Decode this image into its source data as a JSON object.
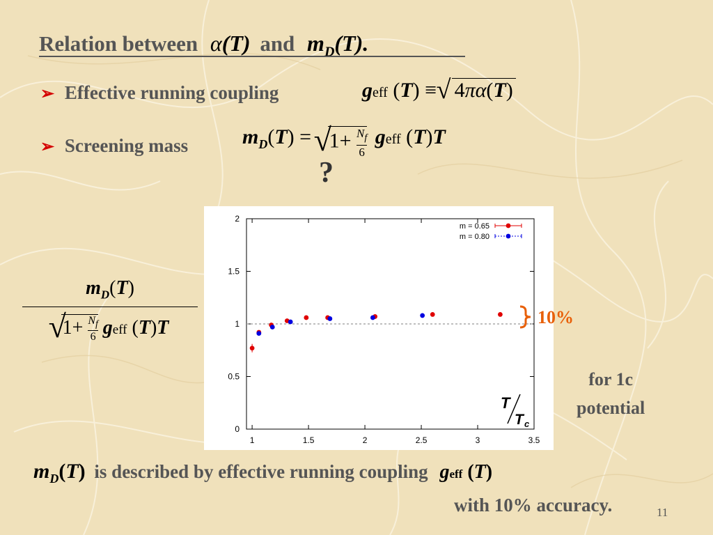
{
  "heading": {
    "text_prefix": "Relation between",
    "alpha_T": "α(T)",
    "and": "and",
    "mD_T": "mD(T)."
  },
  "bullets": [
    {
      "label": "Effective running coupling",
      "formula": "g_eff(T) ≡ √(4πα(T))"
    },
    {
      "label": "Screening mass",
      "formula": "m_D(T) = √(1+N_f/6) g_eff(T) T"
    }
  ],
  "question_mark": "?",
  "left_formula": {
    "numerator": "m_D(T)",
    "denominator": "√(1+N_f/6) g_eff(T) T"
  },
  "annotations": {
    "percent": "10%",
    "for_1c": "for 1c",
    "potential": "potential",
    "x_axis_label": "T/Tc"
  },
  "bottom": {
    "prefix_math": "m_D(T)",
    "text": "is described by effective running coupling",
    "suffix_math": "g_eff(T)",
    "line2": "with 10% accuracy."
  },
  "page_number": "11",
  "colors": {
    "red_series": "#e00000",
    "blue_series": "#0000e0",
    "accent": "#e8600a",
    "arrow": "#d40000"
  },
  "chart_data": {
    "type": "scatter",
    "xlim": [
      0.95,
      3.5
    ],
    "ylim": [
      0,
      2
    ],
    "xticks": [
      "1",
      "1.5",
      "2",
      "2.5",
      "3",
      "3.5"
    ],
    "yticks": [
      "0",
      "0.5",
      "1",
      "1.5",
      "2"
    ],
    "reference_line": 1,
    "legend_position": "top-right",
    "series": [
      {
        "name": "m = 0.65",
        "color": "#e00000",
        "x": [
          1.0,
          1.06,
          1.17,
          1.31,
          1.48,
          1.67,
          2.09,
          2.6,
          3.2
        ],
        "y": [
          0.77,
          0.92,
          0.99,
          1.03,
          1.06,
          1.06,
          1.07,
          1.09,
          1.09
        ],
        "err": [
          0.04,
          0.02,
          0.02,
          0.01,
          0.01,
          0.01,
          0.01,
          0.01,
          0.01
        ]
      },
      {
        "name": "m = 0.80",
        "color": "#0000e0",
        "x": [
          1.06,
          1.18,
          1.34,
          1.69,
          2.07,
          2.51
        ],
        "y": [
          0.91,
          0.97,
          1.02,
          1.05,
          1.06,
          1.08
        ],
        "err": [
          0.02,
          0.02,
          0.01,
          0.01,
          0.01,
          0.01
        ]
      }
    ]
  }
}
